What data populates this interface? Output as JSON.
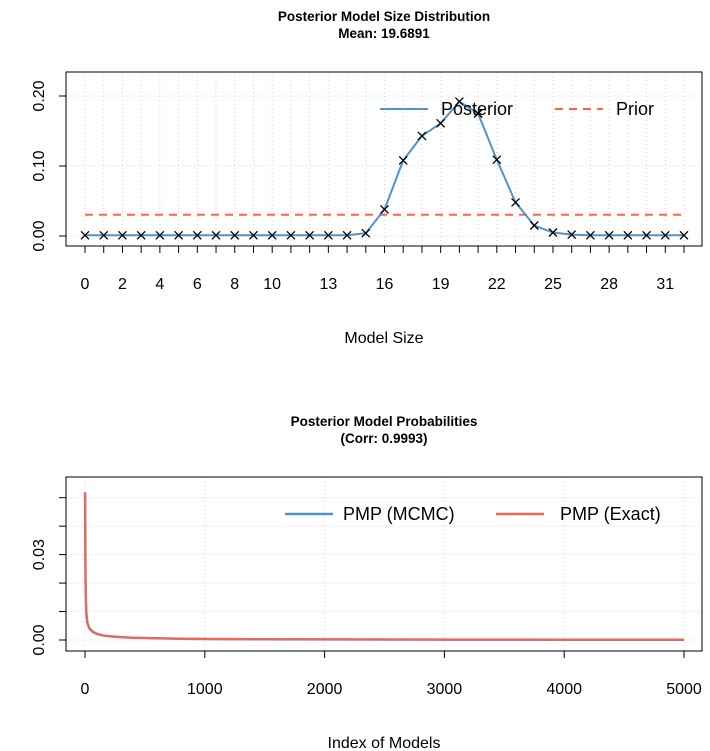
{
  "chart_data": [
    {
      "type": "line",
      "title": "Posterior Model Size Distribution",
      "subtitle": "Mean: 19.6891",
      "xlabel": "Model Size",
      "ylabel": "",
      "x": [
        0,
        1,
        2,
        3,
        4,
        5,
        6,
        7,
        8,
        9,
        10,
        11,
        12,
        13,
        14,
        15,
        16,
        17,
        18,
        19,
        20,
        21,
        22,
        23,
        24,
        25,
        26,
        27,
        28,
        29,
        30,
        31,
        32
      ],
      "xtick_labels": [
        "0",
        "2",
        "4",
        "6",
        "8",
        "10",
        "13",
        "16",
        "19",
        "22",
        "25",
        "28",
        "31"
      ],
      "xtick_positions": [
        0,
        2,
        4,
        6,
        8,
        10,
        13,
        16,
        19,
        22,
        25,
        28,
        31
      ],
      "yticks": [
        0.0,
        0.1,
        0.2
      ],
      "ytick_labels": [
        "0.00",
        "0.10",
        "0.20"
      ],
      "ylim": [
        0,
        0.2
      ],
      "xlim": [
        0,
        32
      ],
      "series": [
        {
          "name": "Posterior",
          "color": "#4f94cd",
          "markers": "x",
          "values": [
            0.001,
            0.001,
            0.001,
            0.001,
            0.001,
            0.001,
            0.001,
            0.001,
            0.001,
            0.001,
            0.001,
            0.001,
            0.001,
            0.001,
            0.001,
            0.004,
            0.038,
            0.108,
            0.143,
            0.161,
            0.192,
            0.175,
            0.109,
            0.048,
            0.015,
            0.005,
            0.002,
            0.001,
            0.001,
            0.001,
            0.001,
            0.001,
            0.001
          ]
        },
        {
          "name": "Prior",
          "color": "#ff6347",
          "dashed": true,
          "values": [
            0.0303,
            0.0303,
            0.0303,
            0.0303,
            0.0303,
            0.0303,
            0.0303,
            0.0303,
            0.0303,
            0.0303,
            0.0303,
            0.0303,
            0.0303,
            0.0303,
            0.0303,
            0.0303,
            0.0303,
            0.0303,
            0.0303,
            0.0303,
            0.0303,
            0.0303,
            0.0303,
            0.0303,
            0.0303,
            0.0303,
            0.0303,
            0.0303,
            0.0303,
            0.0303,
            0.0303,
            0.0303,
            0.0303
          ]
        }
      ],
      "legend": "top-right",
      "grid": true
    },
    {
      "type": "line",
      "title": "Posterior Model Probabilities",
      "subtitle": "(Corr: 0.9993)",
      "xlabel": "Index of Models",
      "ylabel": "",
      "xticks": [
        0,
        1000,
        2000,
        3000,
        4000,
        5000
      ],
      "xtick_labels": [
        "0",
        "1000",
        "2000",
        "3000",
        "4000",
        "5000"
      ],
      "yticks": [
        0.0,
        0.03
      ],
      "ytick_labels": [
        "0.00",
        "0.03"
      ],
      "xlim": [
        0,
        5000
      ],
      "ylim": [
        0,
        0.052
      ],
      "series": [
        {
          "name": "PMP (MCMC)",
          "color": "#4f94cd",
          "x": [
            1,
            2,
            3,
            5,
            8,
            12,
            20,
            35,
            60,
            100,
            150,
            200,
            300,
            400,
            600,
            800,
            1000,
            1500,
            2000,
            3000,
            4000,
            5000
          ],
          "values": [
            0.0515,
            0.04,
            0.03,
            0.02,
            0.013,
            0.009,
            0.006,
            0.0042,
            0.003,
            0.0021,
            0.0016,
            0.0013,
            0.001,
            0.0008,
            0.0006,
            0.00045,
            0.00035,
            0.00025,
            0.0002,
            0.00015,
            0.0001,
            0.0001
          ]
        },
        {
          "name": "PMP (Exact)",
          "color": "#ff6347",
          "x": [
            1,
            2,
            3,
            5,
            8,
            12,
            20,
            35,
            60,
            100,
            150,
            200,
            300,
            400,
            600,
            800,
            1000,
            1500,
            2000,
            3000,
            4000,
            5000
          ],
          "values": [
            0.052,
            0.041,
            0.031,
            0.021,
            0.0135,
            0.0093,
            0.0062,
            0.0043,
            0.0031,
            0.0022,
            0.0017,
            0.0013,
            0.001,
            0.0008,
            0.0006,
            0.00045,
            0.00035,
            0.00025,
            0.0002,
            0.00015,
            0.0001,
            0.0001
          ]
        }
      ],
      "legend": "top-right",
      "grid": true
    }
  ]
}
